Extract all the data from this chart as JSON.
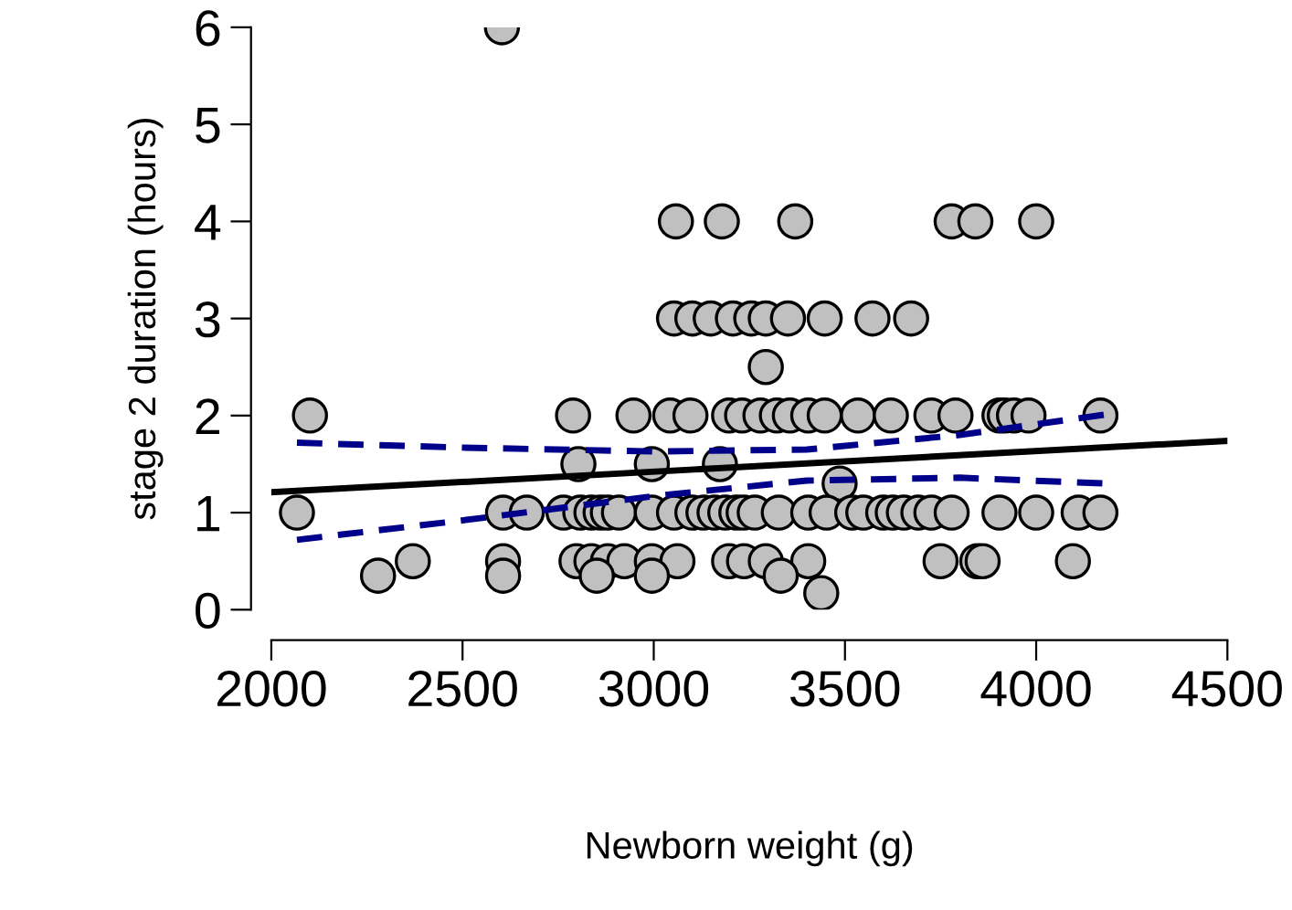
{
  "chart_data": {
    "type": "scatter",
    "xlabel": "Newborn weight (g)",
    "ylabel": "stage 2 duration (hours)",
    "xlim": [
      2000,
      4500
    ],
    "ylim": [
      0,
      6
    ],
    "xticks": [
      2000,
      2500,
      3000,
      3500,
      4000,
      4500
    ],
    "yticks": [
      0,
      1,
      2,
      3,
      4,
      5,
      6
    ],
    "grid": false,
    "legend": false,
    "series": [
      {
        "color": "#c0c0c0",
        "marker": "circle",
        "x": [
          2603,
          3058,
          3178,
          3370,
          3779,
          3841,
          4000,
          3053,
          3101,
          3149,
          3207,
          3255,
          3293,
          3351,
          3447,
          3572,
          3673,
          3293,
          2101,
          2789,
          2947,
          3043,
          3096,
          3197,
          3231,
          3279,
          3322,
          3356,
          3404,
          3447,
          3534,
          3620,
          3726,
          3789,
          3904,
          3918,
          3942,
          3980,
          4168,
          2803,
          2995,
          3173,
          3486,
          2067,
          2606,
          2668,
          2764,
          2808,
          2837,
          2861,
          2880,
          2909,
          2995,
          3053,
          3101,
          3130,
          3159,
          3187,
          3216,
          3235,
          3264,
          3327,
          3404,
          3452,
          3519,
          3548,
          3600,
          3625,
          3654,
          3692,
          3726,
          3779,
          3904,
          4000,
          4111,
          4168,
          2370,
          2606,
          2798,
          2837,
          2880,
          2923,
          2995,
          3062,
          3197,
          3236,
          3293,
          3404,
          3750,
          3846,
          3860,
          4096,
          2279,
          2606,
          2851,
          2995,
          3332,
          3438
        ],
        "values": [
          6,
          4,
          4,
          4,
          4,
          4,
          4,
          3,
          3,
          3,
          3,
          3,
          3,
          3,
          3,
          3,
          3,
          2.5,
          2,
          2,
          2,
          2,
          2,
          2,
          2,
          2,
          2,
          2,
          2,
          2,
          2,
          2,
          2,
          2,
          2,
          2,
          2,
          2,
          2,
          1.5,
          1.5,
          1.5,
          1.3,
          1,
          1,
          1,
          1,
          1,
          1,
          1,
          1,
          1,
          1,
          1,
          1,
          1,
          1,
          1,
          1,
          1,
          1,
          1,
          1,
          1,
          1,
          1,
          1,
          1,
          1,
          1,
          1,
          1,
          1,
          1,
          1,
          1,
          0.5,
          0.5,
          0.5,
          0.5,
          0.5,
          0.5,
          0.5,
          0.5,
          0.5,
          0.5,
          0.5,
          0.5,
          0.5,
          0.5,
          0.5,
          0.5,
          0.35,
          0.35,
          0.35,
          0.35,
          0.35,
          0.17
        ]
      },
      {
        "type": "line",
        "color": "#000000",
        "line_style": "solid",
        "x": [
          2000,
          4500
        ],
        "values": [
          1.21,
          1.74
        ]
      },
      {
        "type": "line",
        "color": "#00008b",
        "line_style": "dashed",
        "x": [
          2067,
          2500,
          3000,
          3400,
          3800,
          4180
        ],
        "values": [
          1.72,
          1.67,
          1.63,
          1.65,
          1.8,
          2.01
        ]
      },
      {
        "type": "line",
        "color": "#00008b",
        "line_style": "dashed",
        "x": [
          2067,
          2500,
          3000,
          3400,
          3800,
          4180
        ],
        "values": [
          0.72,
          0.92,
          1.17,
          1.33,
          1.36,
          1.3
        ]
      }
    ]
  }
}
